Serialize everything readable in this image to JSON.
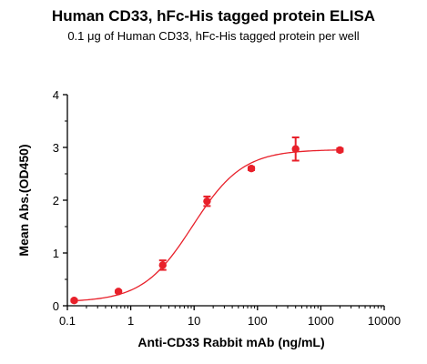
{
  "chart_data": {
    "type": "scatter",
    "title": "Human CD33, hFc-His tagged protein ELISA",
    "subtitle": "0.1 μg of Human CD33, hFc-His tagged protein per well",
    "xlabel": "Anti-CD33 Rabbit mAb (ng/mL)",
    "ylabel": "Mean Abs.(OD450)",
    "x_scale": "log",
    "xlim": [
      0.1,
      10000
    ],
    "ylim": [
      0,
      4
    ],
    "x_ticks": [
      0.1,
      1,
      10,
      100,
      1000,
      10000
    ],
    "x_tick_labels": [
      "0.1",
      "1",
      "10",
      "100",
      "1000",
      "10000"
    ],
    "y_ticks": [
      0,
      1,
      2,
      3,
      4
    ],
    "y_tick_labels": [
      "0",
      "1",
      "2",
      "3",
      "4"
    ],
    "grid": false,
    "color": "#e8202a",
    "points": [
      {
        "x": 0.128,
        "y": 0.1,
        "err": 0.02
      },
      {
        "x": 0.64,
        "y": 0.27,
        "err": 0.02
      },
      {
        "x": 3.2,
        "y": 0.77,
        "err": 0.09
      },
      {
        "x": 16,
        "y": 1.98,
        "err": 0.09
      },
      {
        "x": 80,
        "y": 2.6,
        "err": 0.03
      },
      {
        "x": 400,
        "y": 2.97,
        "err": 0.22
      },
      {
        "x": 2000,
        "y": 2.95,
        "err": 0.03
      }
    ],
    "fit": {
      "bottom": 0.07,
      "top": 2.96,
      "ec50": 9.5,
      "hill": 1.1
    }
  }
}
